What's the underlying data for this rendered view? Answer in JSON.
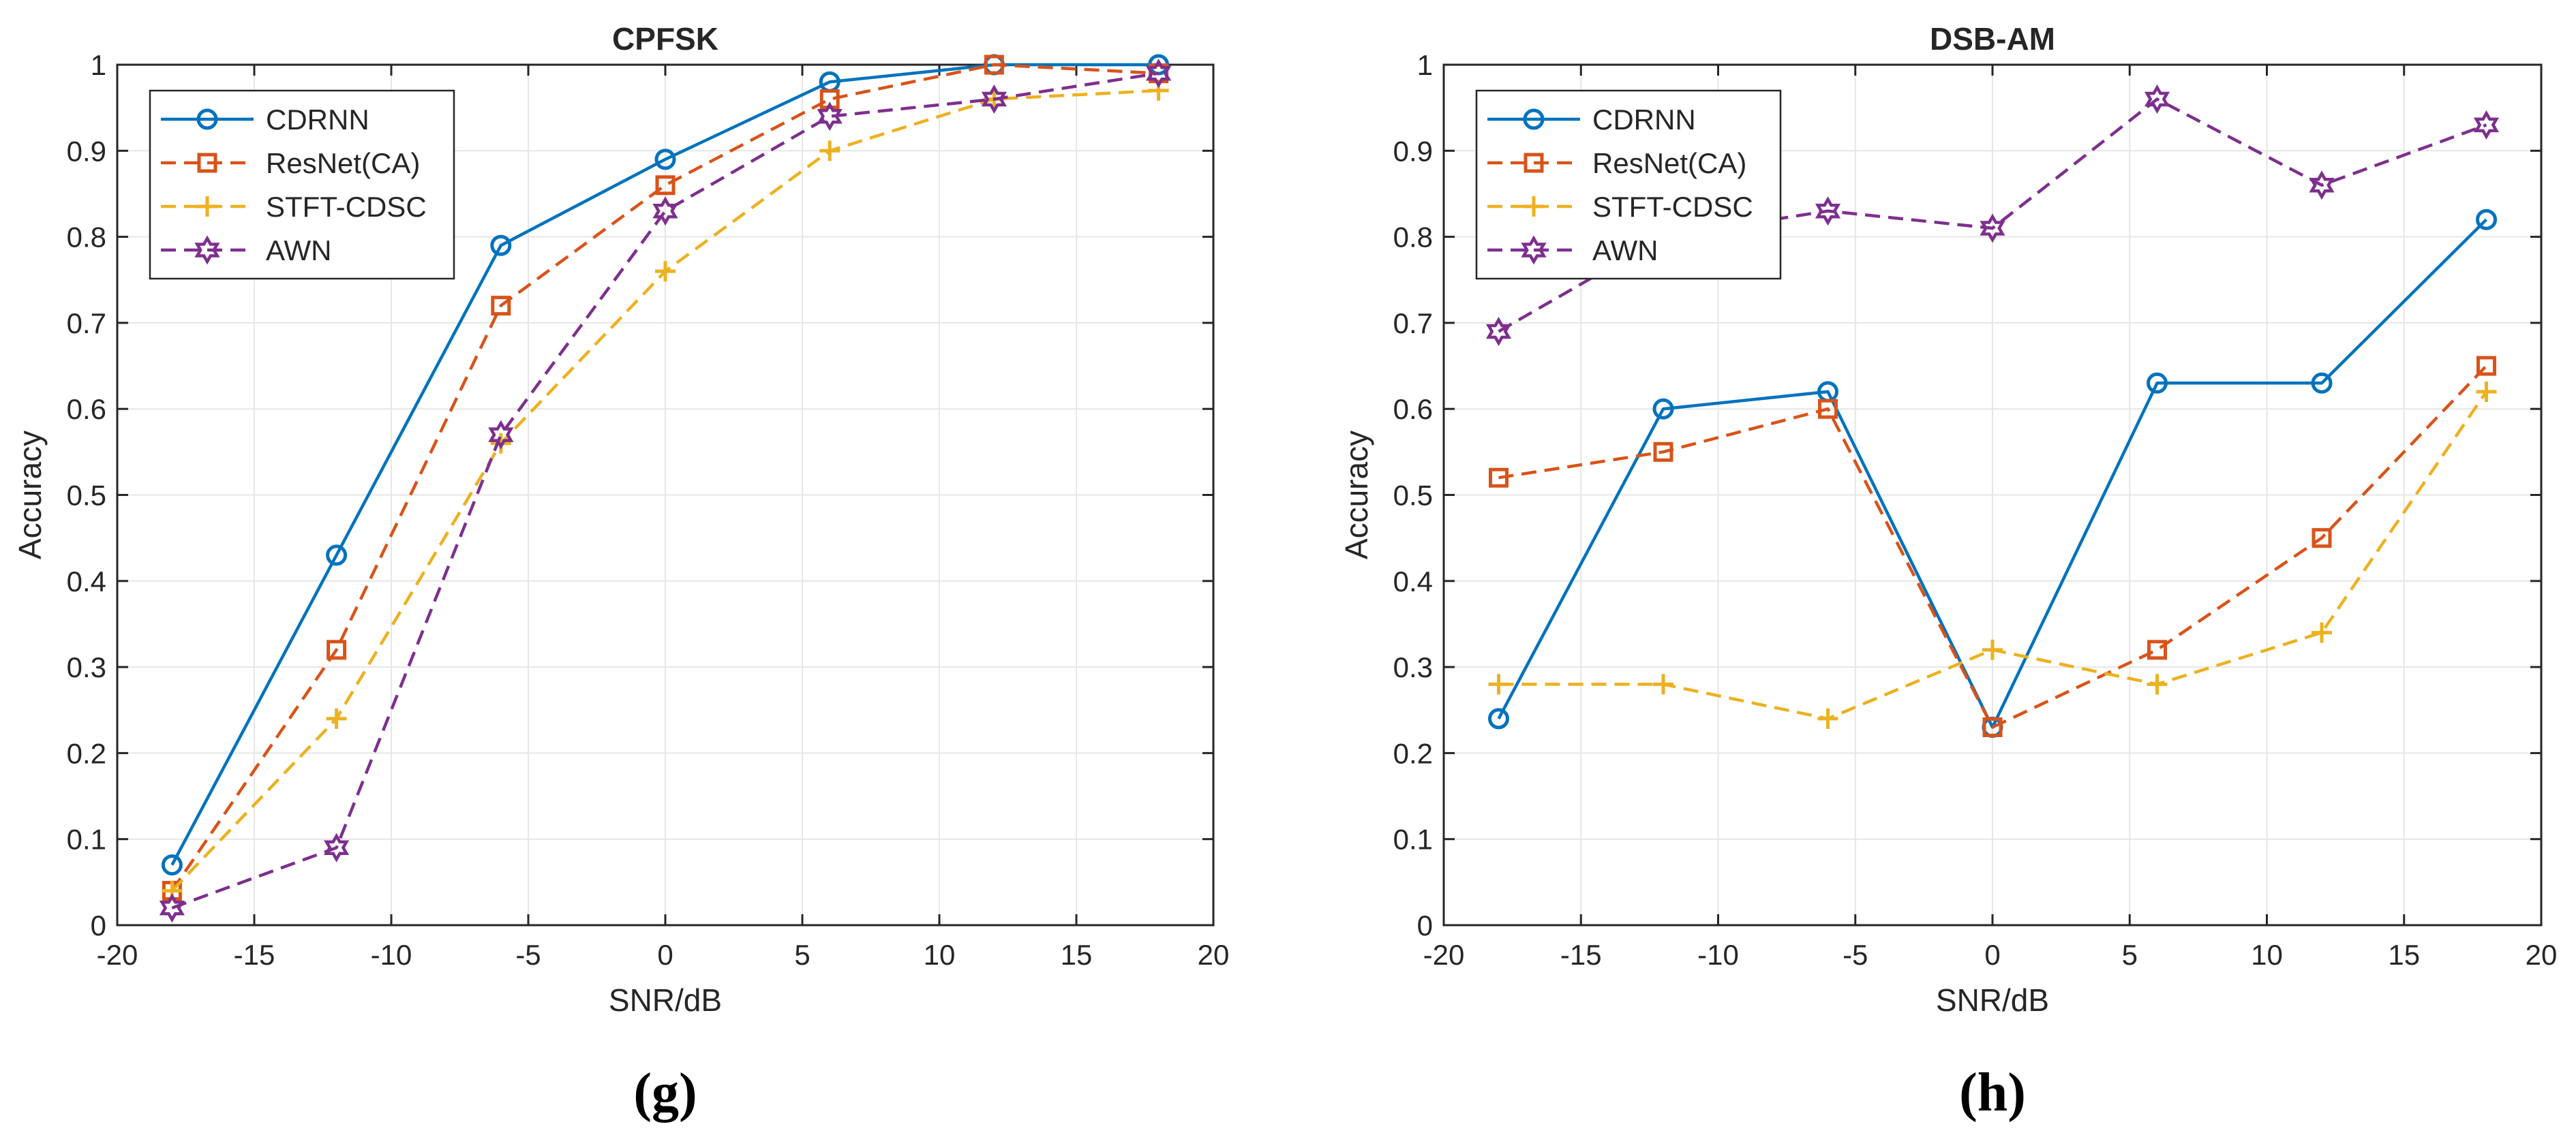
{
  "chart_data": [
    {
      "type": "line",
      "title": "CPFSK",
      "xlabel": "SNR/dB",
      "ylabel": "Accuracy",
      "caption": "(g)",
      "xlim": [
        -20,
        20
      ],
      "ylim": [
        0,
        1
      ],
      "xticks": [
        -20,
        -15,
        -10,
        -5,
        0,
        5,
        10,
        15,
        20
      ],
      "yticks": [
        0,
        0.1,
        0.2,
        0.3,
        0.4,
        0.5,
        0.6,
        0.7,
        0.8,
        0.9,
        1
      ],
      "grid": true,
      "legend_position": "top-left",
      "x": [
        -18,
        -12,
        -6,
        0,
        6,
        12,
        18
      ],
      "series": [
        {
          "name": "CDRNN",
          "values": [
            0.07,
            0.43,
            0.79,
            0.89,
            0.98,
            1.0,
            1.0
          ],
          "color": "#0072BD",
          "dash": "solid",
          "marker": "circle"
        },
        {
          "name": "ResNet(CA)",
          "values": [
            0.04,
            0.32,
            0.72,
            0.86,
            0.96,
            1.0,
            0.99
          ],
          "color": "#D95319",
          "dash": "dashed",
          "marker": "square"
        },
        {
          "name": "STFT-CDSC",
          "values": [
            0.04,
            0.24,
            0.56,
            0.76,
            0.9,
            0.96,
            0.97
          ],
          "color": "#EDB120",
          "dash": "dashed",
          "marker": "plus"
        },
        {
          "name": "AWN",
          "values": [
            0.02,
            0.09,
            0.57,
            0.83,
            0.94,
            0.96,
            0.99
          ],
          "color": "#7E2F8E",
          "dash": "dashed",
          "marker": "hexagram"
        }
      ]
    },
    {
      "type": "line",
      "title": "DSB-AM",
      "xlabel": "SNR/dB",
      "ylabel": "Accuracy",
      "caption": "(h)",
      "xlim": [
        -20,
        20
      ],
      "ylim": [
        0,
        1
      ],
      "xticks": [
        -20,
        -15,
        -10,
        -5,
        0,
        5,
        10,
        15,
        20
      ],
      "yticks": [
        0,
        0.1,
        0.2,
        0.3,
        0.4,
        0.5,
        0.6,
        0.7,
        0.8,
        0.9,
        1
      ],
      "grid": true,
      "legend_position": "top-left",
      "x": [
        -18,
        -12,
        -6,
        0,
        6,
        12,
        18
      ],
      "series": [
        {
          "name": "CDRNN",
          "values": [
            0.24,
            0.6,
            0.62,
            0.23,
            0.63,
            0.63,
            0.82
          ],
          "color": "#0072BD",
          "dash": "solid",
          "marker": "circle"
        },
        {
          "name": "ResNet(CA)",
          "values": [
            0.52,
            0.55,
            0.6,
            0.23,
            0.32,
            0.45,
            0.65
          ],
          "color": "#D95319",
          "dash": "dashed",
          "marker": "square"
        },
        {
          "name": "STFT-CDSC",
          "values": [
            0.28,
            0.28,
            0.24,
            0.32,
            0.28,
            0.34,
            0.62
          ],
          "color": "#EDB120",
          "dash": "dashed",
          "marker": "plus"
        },
        {
          "name": "AWN",
          "values": [
            0.69,
            0.8,
            0.83,
            0.81,
            0.96,
            0.86,
            0.93
          ],
          "color": "#7E2F8E",
          "dash": "dashed",
          "marker": "hexagram"
        }
      ]
    }
  ]
}
